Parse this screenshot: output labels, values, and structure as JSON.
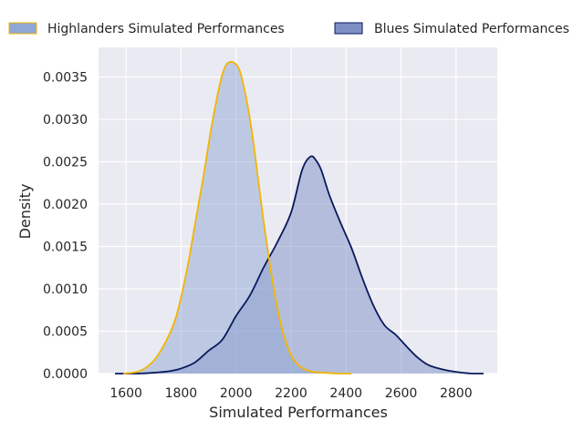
{
  "chart_data": {
    "type": "area",
    "title": "",
    "xlabel": "Simulated Performances",
    "ylabel": "Density",
    "xlim": [
      1500,
      2950
    ],
    "ylim": [
      0,
      0.00385
    ],
    "x_ticks": [
      1600,
      1800,
      2000,
      2200,
      2400,
      2600,
      2800
    ],
    "x_tick_labels": [
      "1600",
      "1800",
      "2000",
      "2200",
      "2400",
      "2600",
      "2800"
    ],
    "y_ticks": [
      0,
      0.0005,
      0.001,
      0.0015,
      0.002,
      0.0025,
      0.003,
      0.0035
    ],
    "y_tick_labels": [
      "0.0000",
      "0.0005",
      "0.0010",
      "0.0015",
      "0.0020",
      "0.0025",
      "0.0030",
      "0.0035"
    ],
    "grid": true,
    "legend_position": "top (above plot, spanning width)",
    "background_color": "#eaeaf2",
    "grid_color": "#ffffff",
    "series": [
      {
        "name": "Highlanders Simulated Performances",
        "fill_color": "#8fa7d4",
        "line_color": "#f2b600",
        "x": [
          1590,
          1650,
          1700,
          1740,
          1780,
          1820,
          1850,
          1880,
          1910,
          1940,
          1960,
          1980,
          2000,
          2010,
          2020,
          2040,
          2060,
          2080,
          2100,
          2120,
          2140,
          2160,
          2180,
          2200,
          2220,
          2250,
          2280,
          2320,
          2370,
          2420
        ],
        "y": [
          0.0,
          3e-05,
          0.00015,
          0.00035,
          0.00065,
          0.0012,
          0.00175,
          0.0023,
          0.0029,
          0.0034,
          0.00362,
          0.00368,
          0.00365,
          0.0036,
          0.0035,
          0.0032,
          0.0028,
          0.0023,
          0.0018,
          0.00135,
          0.00095,
          0.00062,
          0.00038,
          0.00022,
          0.00012,
          5e-05,
          2e-05,
          1e-05,
          0.0,
          0.0
        ]
      },
      {
        "name": "Blues Simulated Performances",
        "fill_color": "#7d8fc4",
        "line_color": "#0a1a5c",
        "x": [
          1560,
          1640,
          1700,
          1760,
          1800,
          1850,
          1900,
          1950,
          2000,
          2050,
          2100,
          2150,
          2200,
          2240,
          2270,
          2290,
          2310,
          2340,
          2380,
          2420,
          2460,
          2500,
          2540,
          2580,
          2620,
          2660,
          2700,
          2750,
          2800,
          2860,
          2900
        ],
        "y": [
          0.0,
          0.0,
          1e-05,
          3e-05,
          6e-05,
          0.00013,
          0.00027,
          0.0004,
          0.00068,
          0.00092,
          0.00125,
          0.00155,
          0.0019,
          0.0024,
          0.00256,
          0.00252,
          0.0024,
          0.0021,
          0.00178,
          0.00148,
          0.00112,
          0.0008,
          0.00057,
          0.00046,
          0.00032,
          0.00019,
          0.0001,
          5e-05,
          2e-05,
          0.0,
          0.0
        ]
      }
    ]
  }
}
